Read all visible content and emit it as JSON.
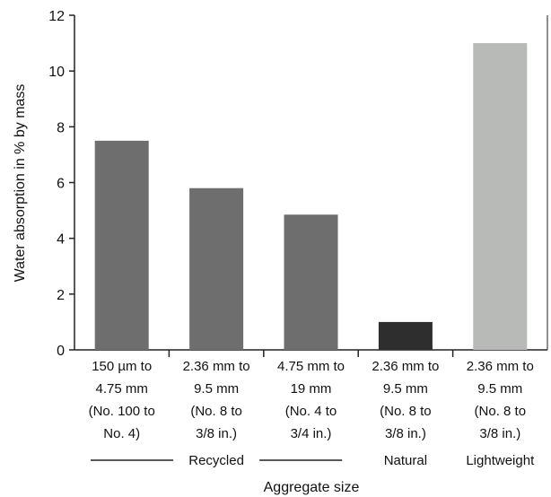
{
  "chart_data": {
    "type": "bar",
    "ylabel": "Water absorption in % by mass",
    "xlabel": "Aggregate size",
    "ylim": [
      0,
      12
    ],
    "yticks": [
      0,
      2,
      4,
      6,
      8,
      10,
      12
    ],
    "grid": false,
    "legend": "none",
    "categories": [
      [
        "150 µm to",
        "4.75 mm",
        "(No. 100 to",
        "No. 4)"
      ],
      [
        "2.36 mm to",
        "9.5 mm",
        "(No. 8 to",
        "3/8 in.)"
      ],
      [
        "4.75 mm to",
        "19 mm",
        "(No. 4 to",
        "3/4 in.)"
      ],
      [
        "2.36 mm to",
        "9.5 mm",
        "(No. 8 to",
        "3/8 in.)"
      ],
      [
        "2.36 mm to",
        "9.5 mm",
        "(No. 8 to",
        "3/8 in.)"
      ]
    ],
    "values": [
      7.5,
      5.8,
      4.85,
      1.0,
      11.0
    ],
    "bar_colors": [
      "#6e6e6e",
      "#6e6e6e",
      "#6e6e6e",
      "#2e2e2e",
      "#b7bab6"
    ],
    "groups": [
      {
        "label": "Recycled",
        "start": 0,
        "end": 2
      },
      {
        "label": "Natural",
        "start": 3,
        "end": 3
      },
      {
        "label": "Lightweight",
        "start": 4,
        "end": 4
      }
    ]
  }
}
